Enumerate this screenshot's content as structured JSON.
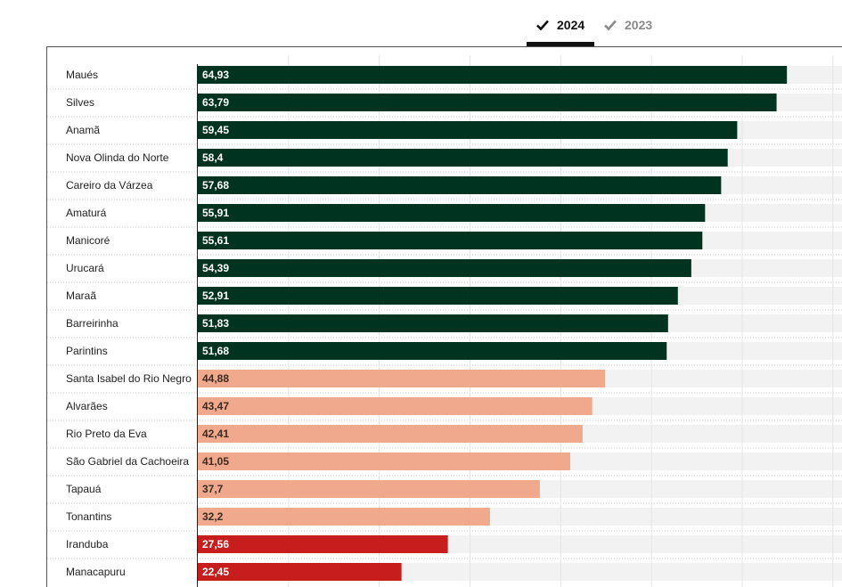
{
  "tabs": [
    {
      "label": "2024",
      "active": true
    },
    {
      "label": "2023",
      "active": false
    }
  ],
  "colors": {
    "high": "#003320",
    "mid": "#f0a98c",
    "low": "#c81d1d",
    "track": "#f2f2f2",
    "tab_active": "#111111",
    "tab_inactive": "#8a8a8a"
  },
  "chart_data": {
    "type": "bar",
    "orientation": "horizontal",
    "xlim": [
      0,
      71
    ],
    "grid": true,
    "categories": [
      "Maués",
      "Silves",
      "Anamã",
      "Nova Olinda do Norte",
      "Careiro da Várzea",
      "Amaturá",
      "Manicoré",
      "Urucará",
      "Maraã",
      "Barreirinha",
      "Parintins",
      "Santa Isabel do Rio Negro",
      "Alvarães",
      "Rio Preto da Eva",
      "São Gabriel da Cachoeira",
      "Tapauá",
      "Tonantins",
      "Iranduba",
      "Manacapuru"
    ],
    "values": [
      64.93,
      63.79,
      59.45,
      58.4,
      57.68,
      55.91,
      55.61,
      54.39,
      52.91,
      51.83,
      51.68,
      44.88,
      43.47,
      42.41,
      41.05,
      37.7,
      32.2,
      27.56,
      22.45
    ],
    "value_labels": [
      "64,93",
      "63,79",
      "59,45",
      "58,4",
      "57,68",
      "55,91",
      "55,61",
      "54,39",
      "52,91",
      "51,83",
      "51,68",
      "44,88",
      "43,47",
      "42,41",
      "41,05",
      "37,7",
      "32,2",
      "27,56",
      "22,45"
    ],
    "color_groups": [
      "high",
      "high",
      "high",
      "high",
      "high",
      "high",
      "high",
      "high",
      "high",
      "high",
      "high",
      "mid",
      "mid",
      "mid",
      "mid",
      "mid",
      "mid",
      "low",
      "low"
    ]
  }
}
